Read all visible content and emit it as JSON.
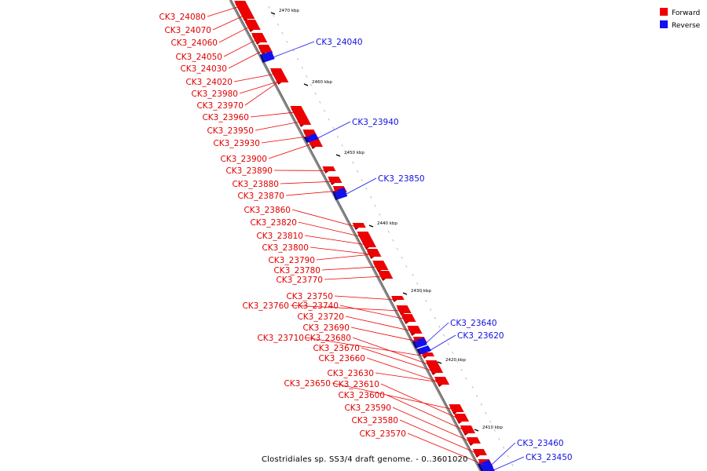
{
  "caption": "Clostridiales sp. SS3/4 draft genome. - 0..3601020",
  "legend": {
    "forward": {
      "label": "Forward",
      "color": "#ee0000"
    },
    "reverse": {
      "label": "Reverse",
      "color": "#1111ee"
    }
  },
  "ticks": [
    "2470 kbp",
    "2460 kbp",
    "2450 kbp",
    "2440 kbp",
    "2430 kbp",
    "2420 kbp",
    "2410 kbp"
  ],
  "genes_forward": [
    "CK3_24080",
    "CK3_24070",
    "CK3_24060",
    "CK3_24050",
    "CK3_24030",
    "CK3_24020",
    "CK3_23980",
    "CK3_23970",
    "CK3_23960",
    "CK3_23950",
    "CK3_23930",
    "CK3_23900",
    "CK3_23890",
    "CK3_23880",
    "CK3_23870",
    "CK3_23860",
    "CK3_23820",
    "CK3_23810",
    "CK3_23800",
    "CK3_23790",
    "CK3_23780",
    "CK3_23770",
    "CK3_23750",
    "CK3_23760",
    "CK3_23740",
    "CK3_23720",
    "CK3_23690",
    "CK3_23710",
    "CK3_23680",
    "CK3_23670",
    "CK3_23660",
    "CK3_23630",
    "CK3_23650",
    "CK3_23610",
    "CK3_23600",
    "CK3_23590",
    "CK3_23580",
    "CK3_23570"
  ],
  "genes_reverse": [
    "CK3_24040",
    "CK3_23940",
    "CK3_23850",
    "CK3_23640",
    "CK3_23620",
    "CK3_23460",
    "CK3_23450"
  ]
}
